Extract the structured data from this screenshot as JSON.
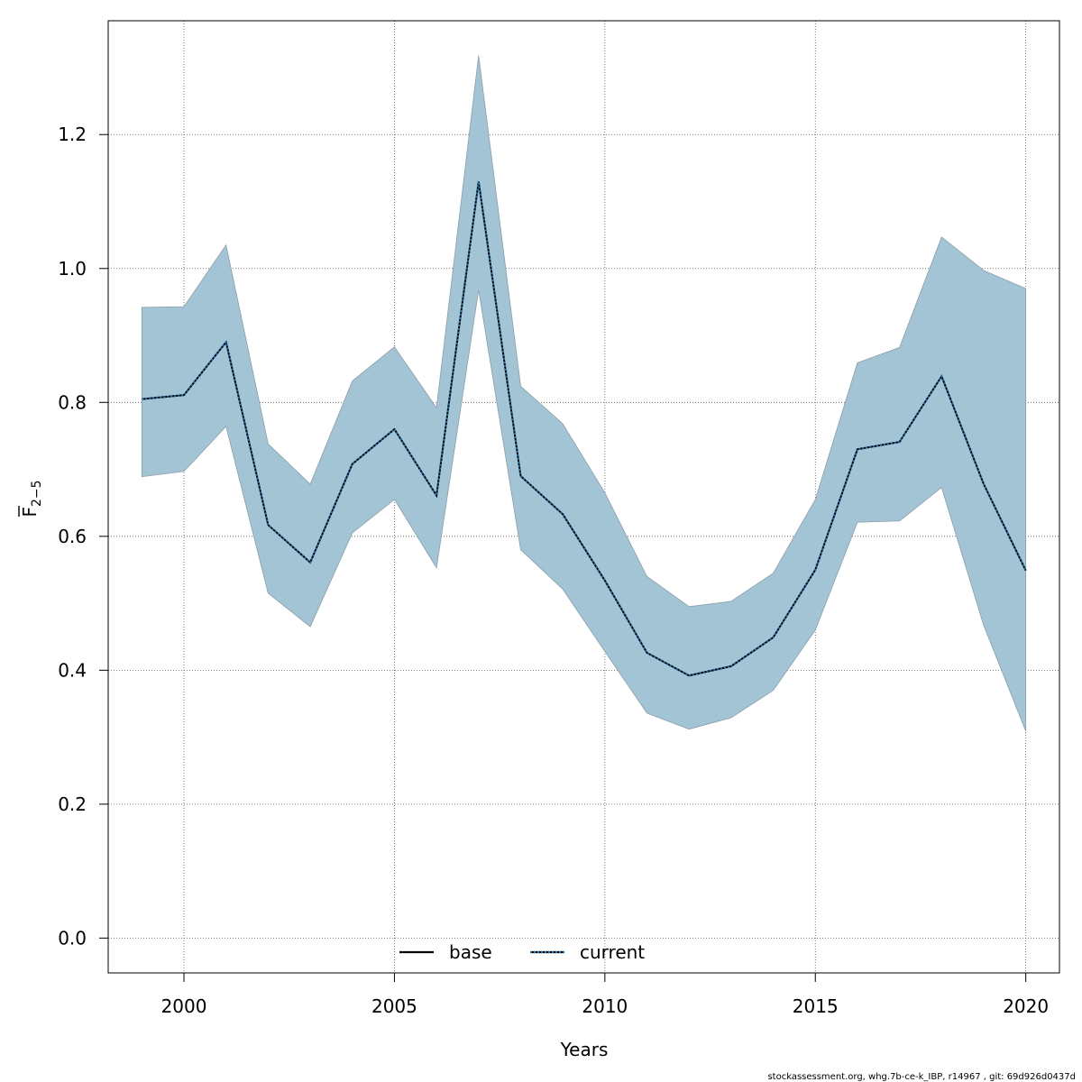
{
  "chart_data": {
    "type": "line",
    "title": "",
    "xlabel": "Years",
    "ylabel_main": "F",
    "ylabel_sub": "2−5",
    "xlim": [
      1998.2,
      2020.8
    ],
    "ylim": [
      -0.052,
      1.37
    ],
    "x_ticks": [
      2000,
      2005,
      2010,
      2015,
      2020
    ],
    "y_ticks": [
      0.0,
      0.2,
      0.4,
      0.6,
      0.8,
      1.0,
      1.2
    ],
    "y_tick_labels": [
      "0.0",
      "0.2",
      "0.4",
      "0.6",
      "0.8",
      "1.0",
      "1.2"
    ],
    "grid": true,
    "legend_position": "bottom",
    "x": [
      1999,
      2000,
      2001,
      2002,
      2003,
      2004,
      2005,
      2006,
      2007,
      2008,
      2009,
      2010,
      2011,
      2012,
      2013,
      2014,
      2015,
      2016,
      2017,
      2018,
      2019,
      2020
    ],
    "band": {
      "color": "#a3c4d5",
      "edge_color": "#8c9ea8",
      "upper": [
        0.942,
        0.943,
        1.035,
        0.738,
        0.678,
        0.832,
        0.883,
        0.792,
        1.318,
        0.824,
        0.768,
        0.665,
        0.54,
        0.495,
        0.503,
        0.545,
        0.655,
        0.859,
        0.882,
        1.047,
        0.997,
        0.97
      ],
      "lower": [
        0.689,
        0.697,
        0.764,
        0.515,
        0.465,
        0.605,
        0.655,
        0.553,
        0.968,
        0.58,
        0.521,
        0.428,
        0.336,
        0.312,
        0.329,
        0.37,
        0.46,
        0.621,
        0.623,
        0.673,
        0.467,
        0.309
      ]
    },
    "series": [
      {
        "name": "base",
        "color": "#000000",
        "style": "solid",
        "values": [
          0.805,
          0.811,
          0.89,
          0.617,
          0.561,
          0.708,
          0.76,
          0.661,
          1.13,
          0.69,
          0.633,
          0.534,
          0.426,
          0.392,
          0.406,
          0.449,
          0.55,
          0.73,
          0.741,
          0.839,
          0.678,
          0.549
        ]
      },
      {
        "name": "current",
        "color": "#1f6fa8",
        "style": "dotted",
        "values": [
          0.805,
          0.811,
          0.89,
          0.617,
          0.561,
          0.708,
          0.76,
          0.661,
          1.13,
          0.69,
          0.633,
          0.534,
          0.426,
          0.392,
          0.406,
          0.449,
          0.55,
          0.73,
          0.741,
          0.839,
          0.678,
          0.549
        ]
      }
    ]
  },
  "footer": "stockassessment.org, whg.7b-ce-k_IBP, r14967 , git: 69d926d0437d"
}
